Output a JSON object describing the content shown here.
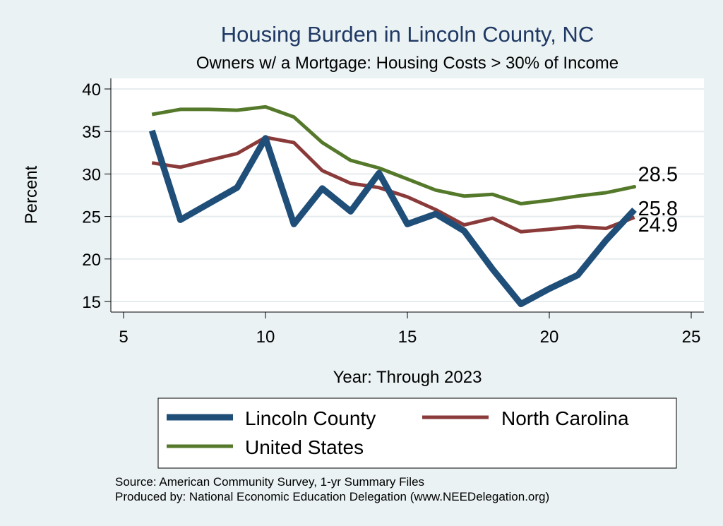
{
  "chart_data": {
    "type": "line",
    "title": "Housing Burden in Lincoln County, NC",
    "subtitle": "Owners w/ a Mortgage: Housing Costs > 30% of Income",
    "xlabel": "Year: Through 2023",
    "ylabel": "Percent",
    "xlim": [
      5,
      25
    ],
    "ylim": [
      14,
      41
    ],
    "x_ticks": [
      "5",
      "10",
      "15",
      "20",
      "25"
    ],
    "y_ticks": [
      "15",
      "20",
      "25",
      "30",
      "35",
      "40"
    ],
    "grid": true,
    "series": [
      {
        "name": "Lincoln County",
        "color": "#1f4e79",
        "x": [
          6,
          7,
          8,
          9,
          10,
          11,
          12,
          13,
          14,
          15,
          16,
          17,
          18,
          19,
          20,
          21,
          22,
          23
        ],
        "values": [
          35.1,
          24.6,
          26.5,
          28.4,
          34.2,
          24.1,
          28.3,
          25.6,
          30.1,
          24.1,
          25.3,
          23.3,
          18.8,
          14.7,
          16.5,
          18.1,
          22.2,
          25.8
        ],
        "end_label": "25.8"
      },
      {
        "name": "North Carolina",
        "color": "#8b3a3a",
        "x": [
          6,
          7,
          8,
          9,
          10,
          11,
          12,
          13,
          14,
          15,
          16,
          17,
          18,
          19,
          20,
          21,
          22,
          23
        ],
        "values": [
          31.3,
          30.8,
          31.6,
          32.4,
          34.3,
          33.7,
          30.4,
          28.9,
          28.4,
          27.3,
          25.8,
          24.0,
          24.8,
          23.2,
          23.5,
          23.8,
          23.6,
          24.9
        ],
        "end_label": "24.9"
      },
      {
        "name": "United States",
        "color": "#55792a",
        "x": [
          6,
          7,
          8,
          9,
          10,
          11,
          12,
          13,
          14,
          15,
          16,
          17,
          18,
          19,
          20,
          21,
          22,
          23
        ],
        "values": [
          37.0,
          37.6,
          37.6,
          37.5,
          37.9,
          36.7,
          33.7,
          31.6,
          30.7,
          29.4,
          28.1,
          27.4,
          27.6,
          26.5,
          26.9,
          27.4,
          27.8,
          28.5
        ],
        "end_label": "28.5"
      }
    ],
    "legend": [
      {
        "label": "Lincoln County"
      },
      {
        "label": "North Carolina"
      },
      {
        "label": "United States"
      }
    ],
    "source_lines": [
      "Source: American Community Survey, 1-yr Summary Files",
      "Produced by: National Economic Education Delegation (www.NEEDelegation.org)"
    ]
  }
}
